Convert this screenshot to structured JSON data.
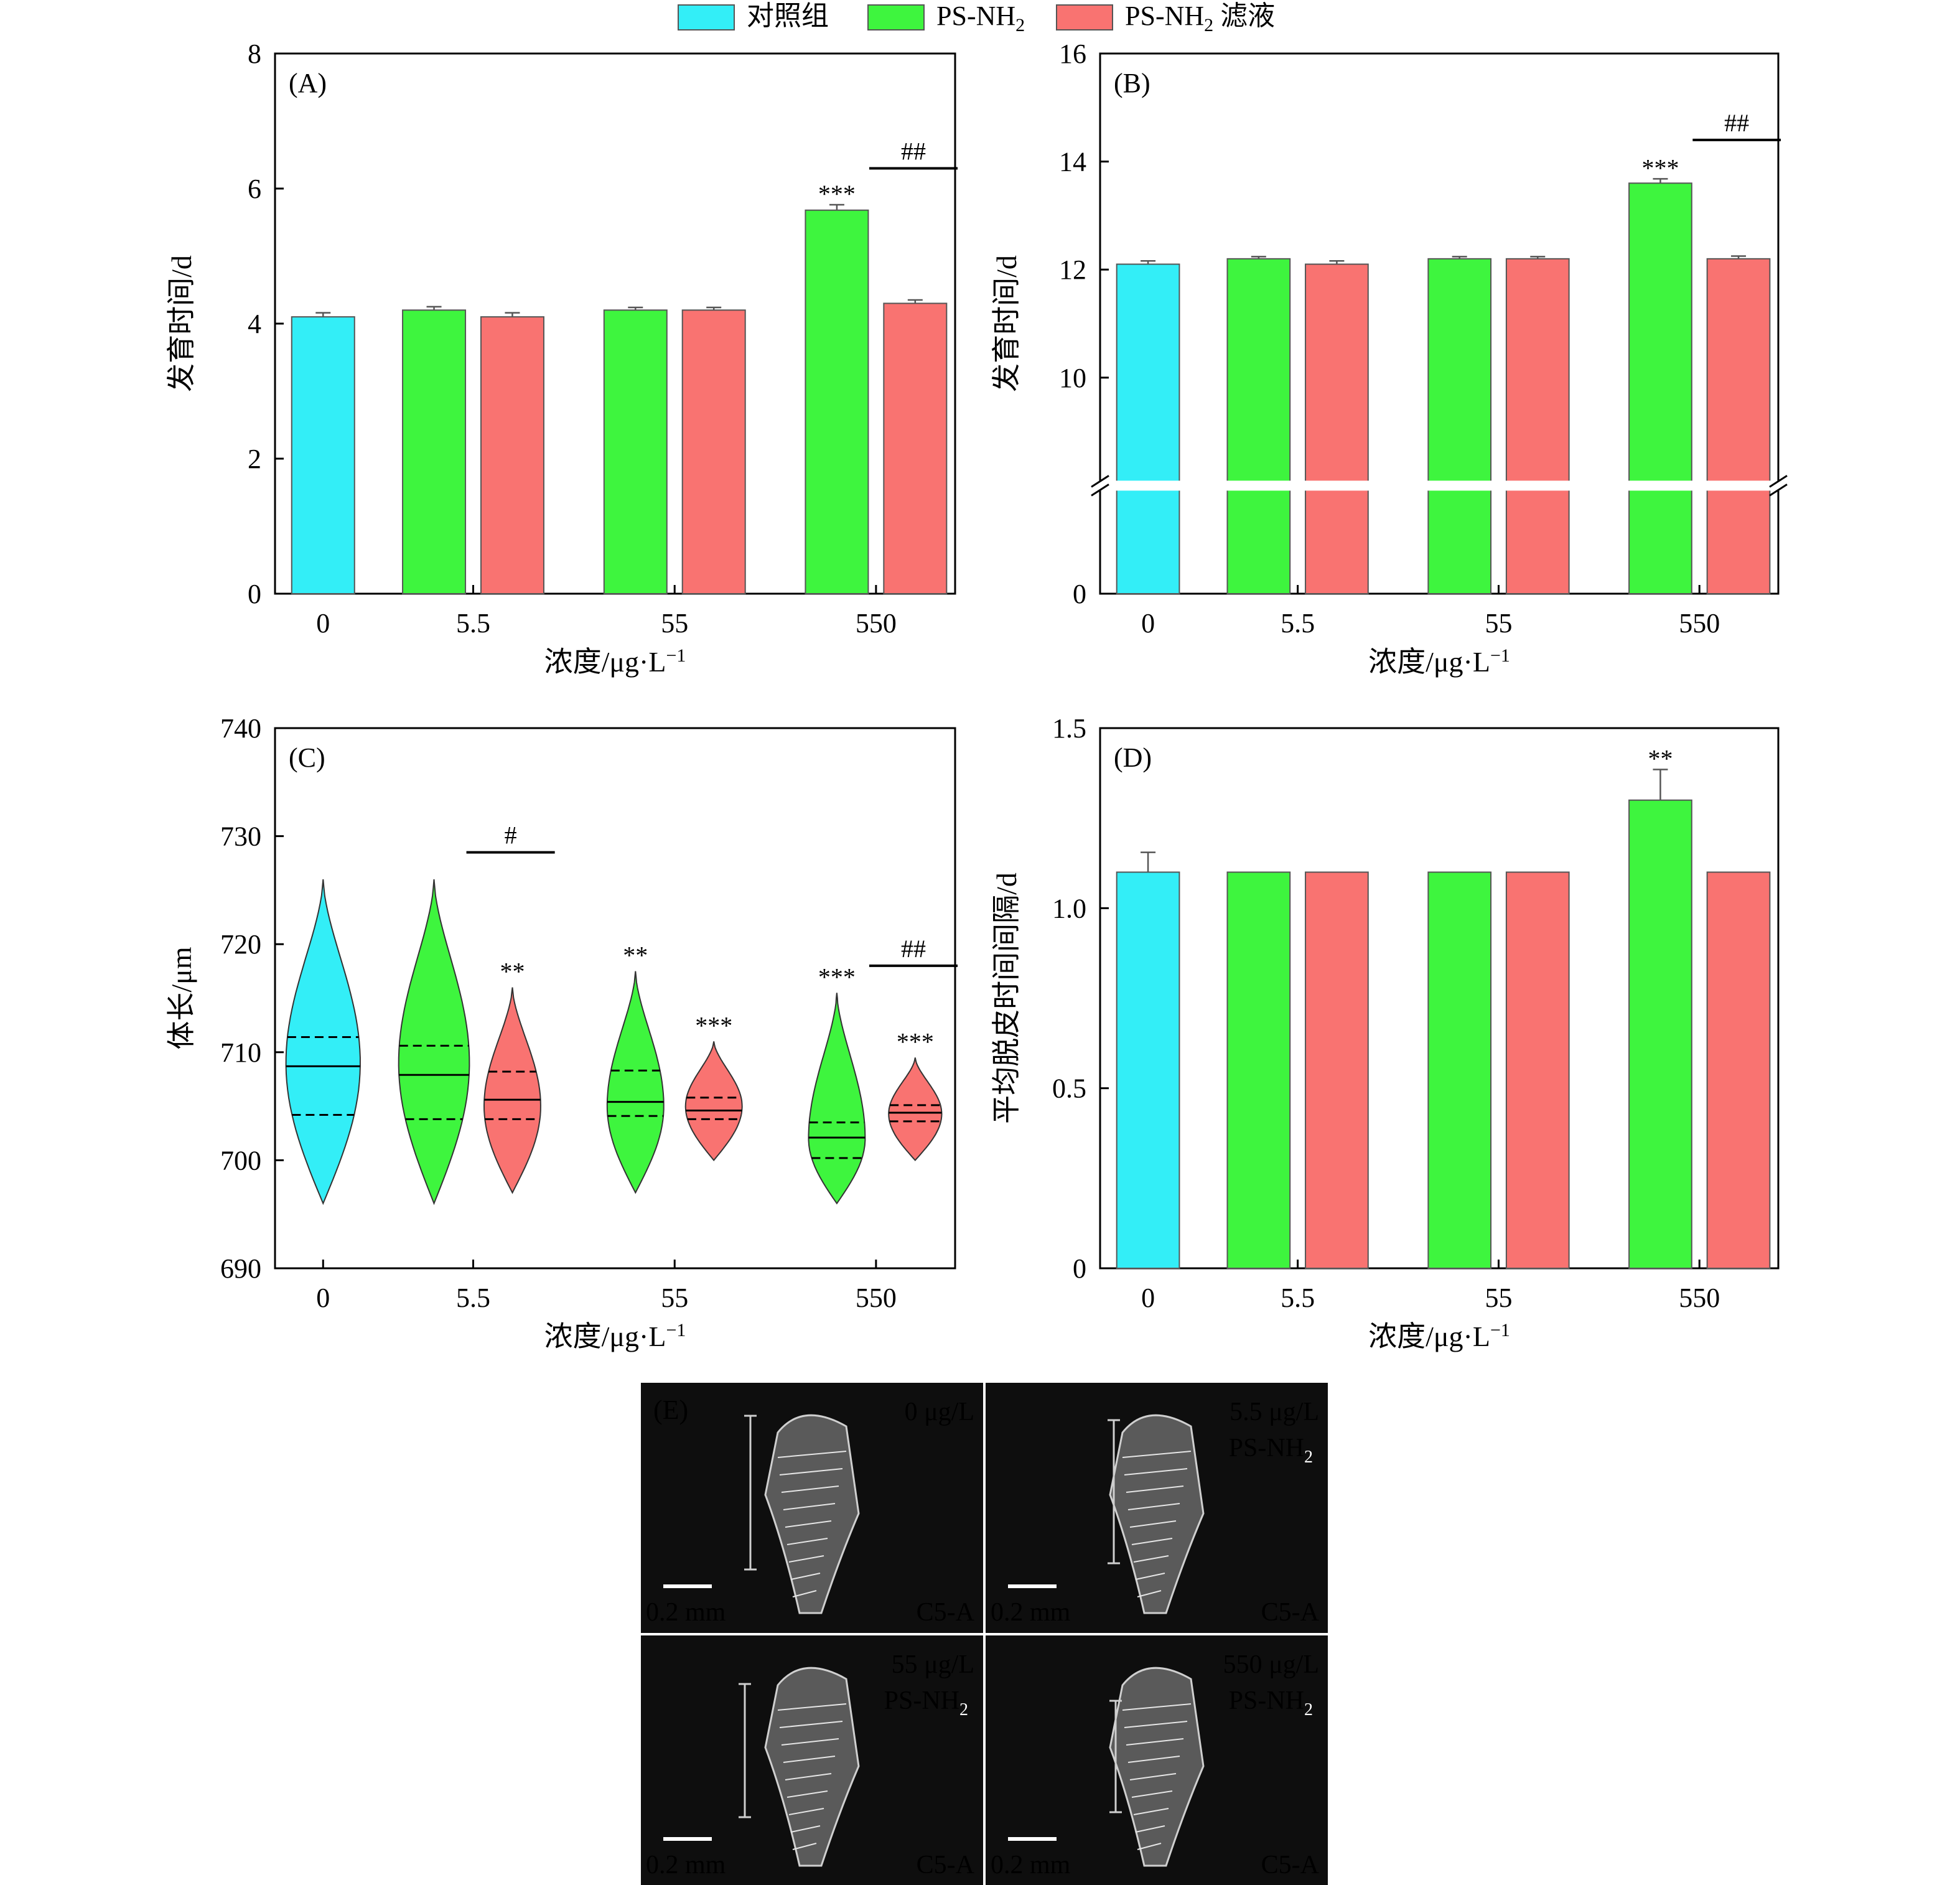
{
  "colors": {
    "control": "#33eef7",
    "psnh2": "#3ef53e",
    "filtrate": "#f97371",
    "outline": "#555555"
  },
  "legend": {
    "items": [
      {
        "key": "control",
        "label": "对照组"
      },
      {
        "key": "psnh2",
        "label": "PS-NH",
        "sub": "2"
      },
      {
        "key": "filtrate",
        "label": "PS-NH",
        "sub": "2",
        "suffix": " 滤液"
      }
    ]
  },
  "chart_data": [
    {
      "panel_label": "(A)",
      "type": "bar",
      "categories": [
        "0",
        "5.5",
        "55",
        "550"
      ],
      "xlabel": "浓度/μg·L",
      "xlabel_sup": "−1",
      "ylabel": "发育时间/d",
      "ylim": [
        0,
        8
      ],
      "yticks": [
        0,
        2,
        4,
        6,
        8
      ],
      "grid": false,
      "bars": [
        {
          "cat": "0",
          "series": "control",
          "value": 4.1,
          "err": 0.06
        },
        {
          "cat": "5.5",
          "series": "psnh2",
          "value": 4.2,
          "err": 0.05
        },
        {
          "cat": "5.5",
          "series": "filtrate",
          "value": 4.1,
          "err": 0.06
        },
        {
          "cat": "55",
          "series": "psnh2",
          "value": 4.2,
          "err": 0.04
        },
        {
          "cat": "55",
          "series": "filtrate",
          "value": 4.2,
          "err": 0.04
        },
        {
          "cat": "550",
          "series": "psnh2",
          "value": 5.68,
          "err": 0.08,
          "mark": "***"
        },
        {
          "cat": "550",
          "series": "filtrate",
          "value": 4.3,
          "err": 0.05
        }
      ],
      "brackets": [
        {
          "cat": "550",
          "label": "##",
          "y": 6.3
        }
      ]
    },
    {
      "panel_label": "(B)",
      "type": "bar",
      "categories": [
        "0",
        "5.5",
        "55",
        "550"
      ],
      "xlabel": "浓度/μg·L",
      "xlabel_sup": "−1",
      "ylabel": "发育时间/d",
      "ylim": [
        0,
        16
      ],
      "yticks": [
        0,
        10,
        12,
        14,
        16
      ],
      "axis_break": true,
      "grid": false,
      "bars": [
        {
          "cat": "0",
          "series": "control",
          "value": 12.1,
          "err": 0.06
        },
        {
          "cat": "5.5",
          "series": "psnh2",
          "value": 12.2,
          "err": 0.04
        },
        {
          "cat": "5.5",
          "series": "filtrate",
          "value": 12.1,
          "err": 0.06
        },
        {
          "cat": "55",
          "series": "psnh2",
          "value": 12.2,
          "err": 0.04
        },
        {
          "cat": "55",
          "series": "filtrate",
          "value": 12.2,
          "err": 0.04
        },
        {
          "cat": "550",
          "series": "psnh2",
          "value": 13.6,
          "err": 0.08,
          "mark": "***"
        },
        {
          "cat": "550",
          "series": "filtrate",
          "value": 12.2,
          "err": 0.05
        }
      ],
      "brackets": [
        {
          "cat": "550",
          "label": "##",
          "y": 14.4
        }
      ]
    },
    {
      "panel_label": "(C)",
      "type": "violin",
      "categories": [
        "0",
        "5.5",
        "55",
        "550"
      ],
      "xlabel": "浓度/μg·L",
      "xlabel_sup": "−1",
      "ylabel": "体长/μm",
      "ylim": [
        690,
        740
      ],
      "yticks": [
        690,
        700,
        710,
        720,
        730,
        740
      ],
      "grid": false,
      "violins": [
        {
          "cat": "0",
          "series": "control",
          "min": 696,
          "max": 726,
          "q1": 704.2,
          "median": 708.7,
          "q3": 711.4,
          "mode": 709,
          "halfwidth": 2.1
        },
        {
          "cat": "5.5",
          "series": "psnh2",
          "min": 696,
          "max": 726,
          "q1": 703.8,
          "median": 707.9,
          "q3": 710.6,
          "mode": 709,
          "halfwidth": 2.0
        },
        {
          "cat": "5.5",
          "series": "filtrate",
          "min": 697,
          "max": 716,
          "q1": 703.8,
          "median": 705.6,
          "q3": 708.2,
          "mode": 705,
          "halfwidth": 1.6,
          "mark": "**"
        },
        {
          "cat": "55",
          "series": "psnh2",
          "min": 697,
          "max": 717.5,
          "q1": 704.1,
          "median": 705.4,
          "q3": 708.3,
          "mode": 705,
          "halfwidth": 1.6,
          "mark": "**"
        },
        {
          "cat": "55",
          "series": "filtrate",
          "min": 700,
          "max": 711,
          "q1": 703.8,
          "median": 704.6,
          "q3": 705.8,
          "mode": 705,
          "halfwidth": 1.6,
          "mark": "***"
        },
        {
          "cat": "550",
          "series": "psnh2",
          "min": 696,
          "max": 715.5,
          "q1": 700.2,
          "median": 702.1,
          "q3": 703.5,
          "mode": 702,
          "halfwidth": 1.6,
          "mark": "***"
        },
        {
          "cat": "550",
          "series": "filtrate",
          "min": 700,
          "max": 709.5,
          "q1": 703.6,
          "median": 704.4,
          "q3": 705.1,
          "mode": 704.3,
          "halfwidth": 1.5,
          "mark": "***"
        }
      ],
      "brackets": [
        {
          "cat": "5.5",
          "label": "#",
          "y": 728.5
        },
        {
          "cat": "550",
          "label": "##",
          "y": 718
        }
      ]
    },
    {
      "panel_label": "(D)",
      "type": "bar",
      "categories": [
        "0",
        "5.5",
        "55",
        "550"
      ],
      "xlabel": "浓度/μg·L",
      "xlabel_sup": "−1",
      "ylabel": "平均脱皮时间间隔/d",
      "ylim": [
        0,
        1.5
      ],
      "yticks": [
        0,
        0.5,
        1.0,
        1.5
      ],
      "ytick_labels": [
        "0",
        "0.5",
        "1.0",
        "1.5"
      ],
      "grid": false,
      "bars": [
        {
          "cat": "0",
          "series": "control",
          "value": 1.1,
          "err": 0.055
        },
        {
          "cat": "5.5",
          "series": "psnh2",
          "value": 1.1,
          "err": 0
        },
        {
          "cat": "5.5",
          "series": "filtrate",
          "value": 1.1,
          "err": 0
        },
        {
          "cat": "55",
          "series": "psnh2",
          "value": 1.1,
          "err": 0
        },
        {
          "cat": "55",
          "series": "filtrate",
          "value": 1.1,
          "err": 0
        },
        {
          "cat": "550",
          "series": "psnh2",
          "value": 1.3,
          "err": 0.085,
          "mark": "**"
        },
        {
          "cat": "550",
          "series": "filtrate",
          "value": 1.1,
          "err": 0
        }
      ],
      "brackets": []
    }
  ],
  "panel_e": {
    "label": "(E)",
    "images": [
      {
        "conc": "0 μg/L",
        "treatment": "",
        "scale": "0.2 mm",
        "stage": "C5-A"
      },
      {
        "conc": "5.5 μg/L",
        "treatment": "PS-NH",
        "sub": "2",
        "scale": "0.2 mm",
        "stage": "C5-A"
      },
      {
        "conc": "55 μg/L",
        "treatment": "PS-NH",
        "sub": "2",
        "scale": "0.2 mm",
        "stage": "C5-A"
      },
      {
        "conc": "550 μg/L",
        "treatment": "PS-NH",
        "sub": "2",
        "scale": "0.2 mm",
        "stage": "C5-A"
      }
    ]
  }
}
